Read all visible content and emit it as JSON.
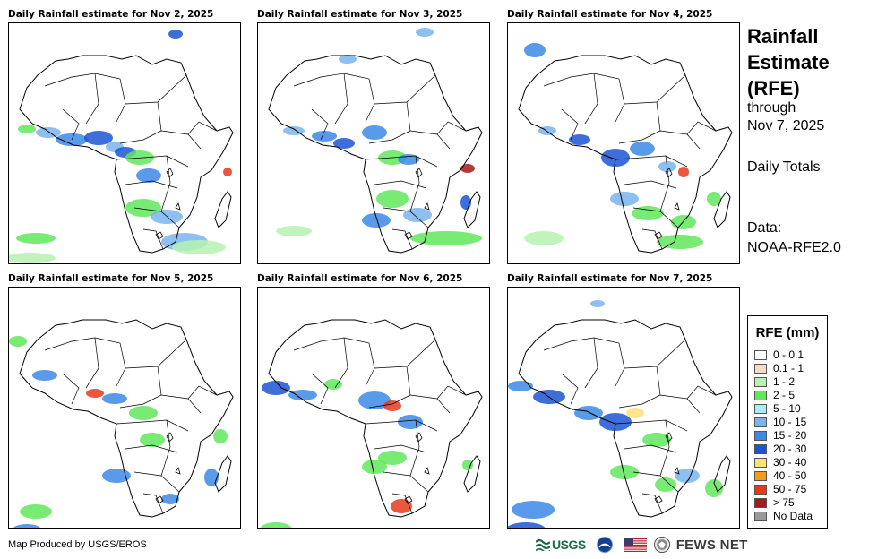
{
  "panels": [
    {
      "title": "Daily Rainfall estimate for Nov 2, 2025"
    },
    {
      "title": "Daily Rainfall estimate for Nov 3, 2025"
    },
    {
      "title": "Daily Rainfall estimate for Nov 4, 2025"
    },
    {
      "title": "Daily Rainfall estimate for Nov 5, 2025"
    },
    {
      "title": "Daily Rainfall estimate for Nov 6, 2025"
    },
    {
      "title": "Daily Rainfall estimate for Nov 7, 2025"
    }
  ],
  "side": {
    "title_line1": "Rainfall",
    "title_line2": "Estimate",
    "title_line3": "(RFE)",
    "through": "through",
    "date": "Nov 7, 2025",
    "totals": "Daily Totals",
    "data_label": "Data:",
    "data_source": "NOAA-RFE2.0"
  },
  "legend": {
    "title": "RFE (mm)",
    "items": [
      {
        "label": "0 - 0.1",
        "color": "#ffffff"
      },
      {
        "label": "0.1 - 1",
        "color": "#f2dcc2"
      },
      {
        "label": "1 - 2",
        "color": "#b6f2b0"
      },
      {
        "label": "2 - 5",
        "color": "#5fe85a"
      },
      {
        "label": "5 - 10",
        "color": "#a8ecf5"
      },
      {
        "label": "10 - 15",
        "color": "#79b4ee"
      },
      {
        "label": "15 - 20",
        "color": "#3c8ae6"
      },
      {
        "label": "20 - 30",
        "color": "#1b55d4"
      },
      {
        "label": "30 - 40",
        "color": "#fde17a"
      },
      {
        "label": "40 - 50",
        "color": "#f59c14"
      },
      {
        "label": "50 - 75",
        "color": "#e8391c"
      },
      {
        "label": "> 75",
        "color": "#a51a1a"
      },
      {
        "label": "No Data",
        "color": "#9a9a9a"
      }
    ]
  },
  "footer": {
    "credit": "Map Produced by USGS/EROS",
    "usgs": "USGS",
    "fews": "FEWS NET"
  }
}
